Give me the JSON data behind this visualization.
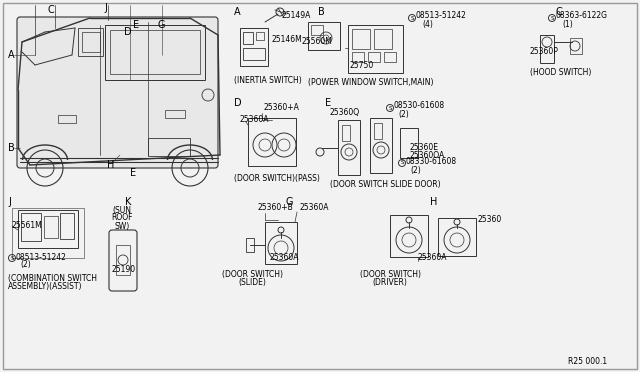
{
  "bg_color": "#f0f0f0",
  "line_color": "#333333",
  "text_color": "#000000",
  "ref_number": "R25 000.1",
  "fig_width": 6.4,
  "fig_height": 3.72,
  "dpi": 100,
  "sections": {
    "A_label": "A",
    "A_part1": "25149A",
    "A_part2": "25146M",
    "A_caption": "(INERTIA SWITCH)",
    "B_label": "B",
    "B_part1": "25560M",
    "B_part2": "25750",
    "B_screw1": "08513-51242",
    "B_screw1_qty": "(4)",
    "B_caption": "(POWER WINDOW SWITCH,MAIN)",
    "C_label": "C",
    "C_screw": "08363-6122G",
    "C_screw_qty": "(1)",
    "C_part": "25360P",
    "C_caption": "(HOOD SWITCH)",
    "D_label": "D",
    "D_part1": "25360+A",
    "D_part2": "25360A",
    "D_caption": "(DOOR SWITCH)(PASS)",
    "E_label": "E",
    "E_part1": "25360Q",
    "E_screw1": "08530-61608",
    "E_screw1_qty": "(2)",
    "E_part2": "25360E",
    "E_part3": "25360OA",
    "E_screw2": "08330-61608",
    "E_screw2_qty": "(2)",
    "E_caption": "(DOOR SWITCH SLIDE DOOR)",
    "G_label": "G",
    "G_part1": "25360+B",
    "G_part2": "25360A",
    "G_caption1": "(DOOR SWITCH)",
    "G_caption2": "(SLIDE)",
    "H_label": "H",
    "H_part1": "25360",
    "H_part2": "25360A",
    "H_caption1": "(DOOR SWITCH)",
    "H_caption2": "(DRIVER)",
    "J_label": "J",
    "J_part1": "25561M",
    "J_screw": "08513-51242",
    "J_screw_qty": "(2)",
    "J_caption1": "(COMBINATION SWITCH",
    "J_caption2": "ASSEMBLY)(ASSIST)",
    "K_label": "K",
    "K_part": "25190",
    "K_caption1": "(SUN",
    "K_caption2": "ROOF",
    "K_caption3": "SW)"
  }
}
